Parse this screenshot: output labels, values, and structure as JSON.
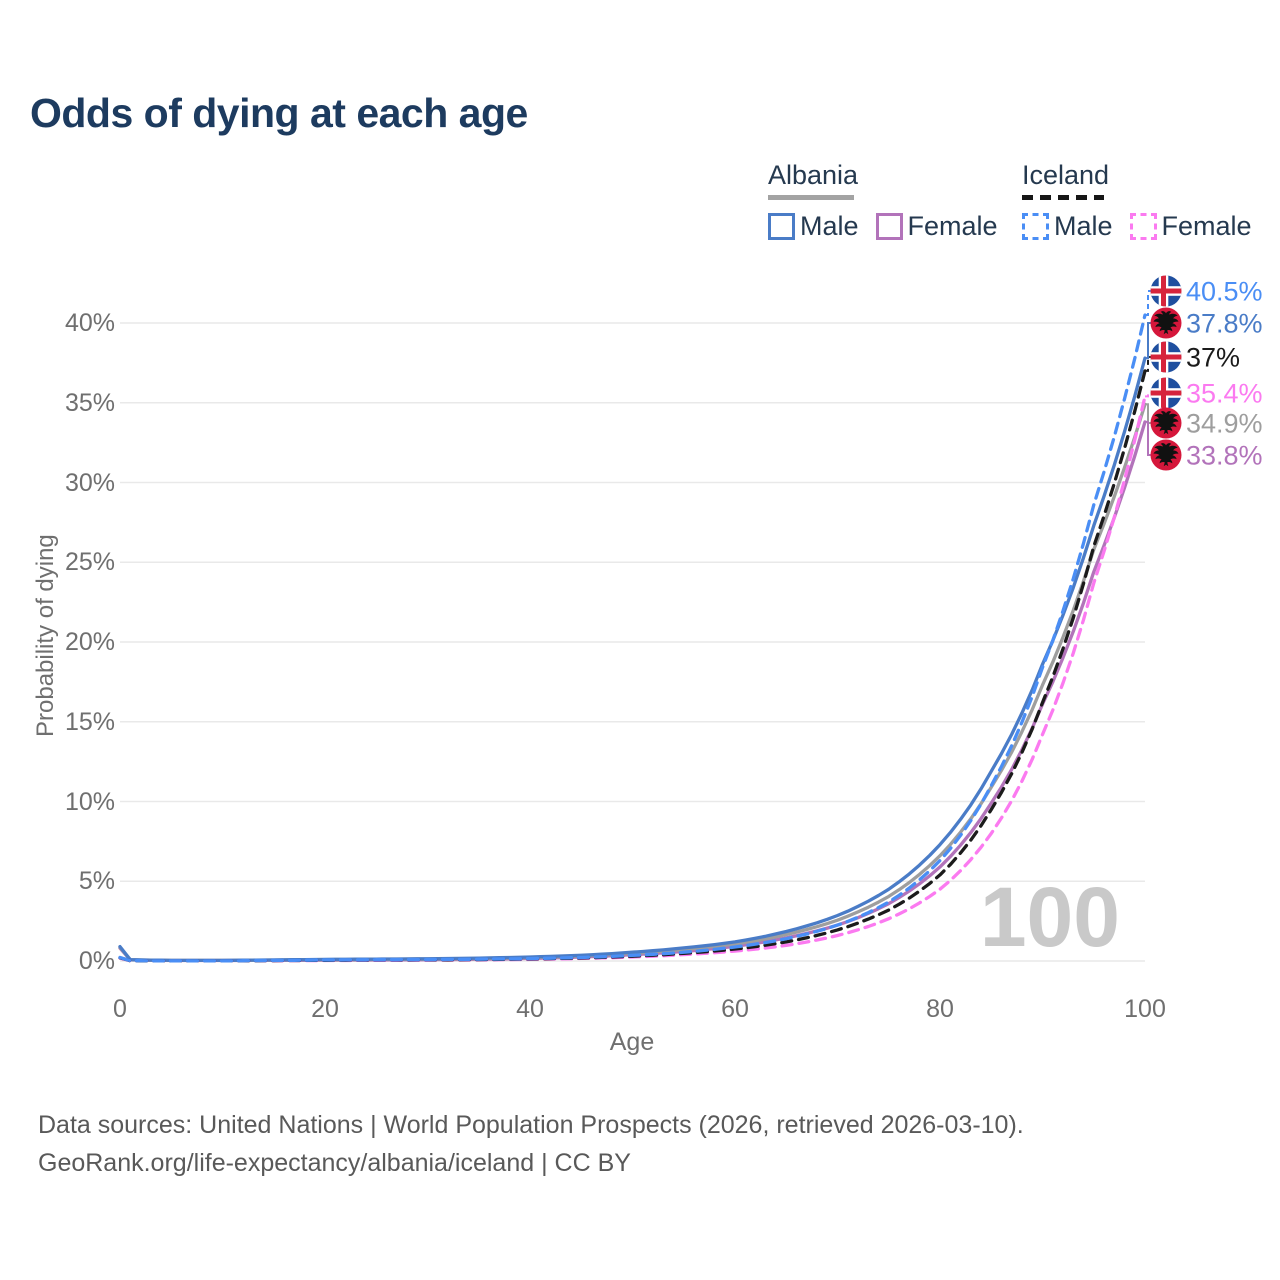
{
  "title": "Odds of dying at each age",
  "legend": {
    "groups": [
      {
        "country": "Albania",
        "line_style": "solid",
        "underline_color": "#a3a3a3",
        "items": [
          {
            "label": "Male",
            "color": "#4a7cc7"
          },
          {
            "label": "Female",
            "color": "#b273ba"
          }
        ]
      },
      {
        "country": "Iceland",
        "line_style": "dashed",
        "underline_color": "#161616",
        "items": [
          {
            "label": "Male",
            "color": "#4a8ef5"
          },
          {
            "label": "Female",
            "color": "#fb7af0"
          }
        ]
      }
    ]
  },
  "chart_data": {
    "type": "line",
    "title": "Odds of dying at each age",
    "xlabel": "Age",
    "ylabel": "Probability of dying",
    "xlim": [
      0,
      100
    ],
    "ylim": [
      0,
      42
    ],
    "xticks": [
      0,
      20,
      40,
      60,
      80,
      100
    ],
    "yticks": [
      {
        "value": 0,
        "label": "0%"
      },
      {
        "value": 5,
        "label": "5%"
      },
      {
        "value": 10,
        "label": "10%"
      },
      {
        "value": 15,
        "label": "15%"
      },
      {
        "value": 20,
        "label": "20%"
      },
      {
        "value": 25,
        "label": "25%"
      },
      {
        "value": 30,
        "label": "30%"
      },
      {
        "value": 35,
        "label": "35%"
      },
      {
        "value": 40,
        "label": "40%"
      }
    ],
    "grid": true,
    "watermark": "100",
    "ages": [
      0,
      1,
      5,
      10,
      15,
      20,
      25,
      30,
      35,
      40,
      45,
      50,
      55,
      60,
      65,
      70,
      75,
      80,
      85,
      90,
      95,
      100
    ],
    "series": [
      {
        "name": "Albania Female",
        "country": "albania",
        "sex": "female",
        "color": "#b273ba",
        "dash": false,
        "values_pct": [
          0.8,
          0.07,
          0.03,
          0.03,
          0.04,
          0.05,
          0.06,
          0.08,
          0.11,
          0.16,
          0.25,
          0.4,
          0.6,
          0.92,
          1.45,
          2.25,
          3.6,
          5.9,
          9.9,
          16.1,
          24.4,
          33.8
        ]
      },
      {
        "name": "Albania Both sexes",
        "country": "albania",
        "sex": "both",
        "color": "#9e9e9e",
        "dash": false,
        "values_pct": [
          0.85,
          0.075,
          0.035,
          0.035,
          0.055,
          0.075,
          0.09,
          0.11,
          0.15,
          0.21,
          0.31,
          0.48,
          0.72,
          1.07,
          1.66,
          2.56,
          4.05,
          6.6,
          10.9,
          17.3,
          25.8,
          34.9
        ]
      },
      {
        "name": "Albania Male",
        "country": "albania",
        "sex": "male",
        "color": "#4a7cc7",
        "dash": false,
        "values_pct": [
          0.9,
          0.08,
          0.04,
          0.04,
          0.07,
          0.1,
          0.12,
          0.14,
          0.18,
          0.25,
          0.36,
          0.55,
          0.82,
          1.2,
          1.85,
          2.85,
          4.5,
          7.3,
          11.9,
          18.6,
          27.3,
          37.8
        ]
      },
      {
        "name": "Iceland Female",
        "country": "iceland",
        "sex": "female",
        "color": "#fb7af0",
        "dash": true,
        "values_pct": [
          0.18,
          0.015,
          0.008,
          0.01,
          0.02,
          0.03,
          0.04,
          0.05,
          0.07,
          0.1,
          0.16,
          0.25,
          0.4,
          0.62,
          0.98,
          1.6,
          2.65,
          4.5,
          8.0,
          14.2,
          23.7,
          35.4
        ]
      },
      {
        "name": "Iceland Both sexes",
        "country": "iceland",
        "sex": "both",
        "color": "#1b1b1b",
        "dash": true,
        "values_pct": [
          0.2,
          0.018,
          0.009,
          0.011,
          0.028,
          0.045,
          0.06,
          0.07,
          0.09,
          0.125,
          0.19,
          0.3,
          0.48,
          0.75,
          1.2,
          1.95,
          3.2,
          5.4,
          9.5,
          16.2,
          26.0,
          37.0
        ]
      },
      {
        "name": "Iceland Male",
        "country": "iceland",
        "sex": "male",
        "color": "#4a8ef5",
        "dash": true,
        "values_pct": [
          0.22,
          0.02,
          0.01,
          0.012,
          0.035,
          0.06,
          0.08,
          0.09,
          0.11,
          0.15,
          0.22,
          0.35,
          0.55,
          0.88,
          1.4,
          2.25,
          3.7,
          6.3,
          11.0,
          18.4,
          28.6,
          40.5
        ]
      }
    ],
    "end_labels": [
      {
        "text": "40.5%",
        "value": 40.5,
        "series": "Iceland Male",
        "flag": "iceland",
        "color": "#4a8ef5",
        "dash": true
      },
      {
        "text": "37.8%",
        "value": 37.8,
        "series": "Albania Male",
        "flag": "albania",
        "color": "#4a7cc7",
        "dash": false
      },
      {
        "text": "37%",
        "value": 37.0,
        "series": "Iceland Both sexes",
        "flag": "iceland",
        "color": "#1b1b1b",
        "dash": true
      },
      {
        "text": "35.4%",
        "value": 35.4,
        "series": "Iceland Female",
        "flag": "iceland",
        "color": "#fb7af0",
        "dash": true
      },
      {
        "text": "34.9%",
        "value": 34.9,
        "series": "Albania Both sexes",
        "flag": "albania",
        "color": "#9e9e9e",
        "dash": false
      },
      {
        "text": "33.8%",
        "value": 33.8,
        "series": "Albania Female",
        "flag": "albania",
        "color": "#b273ba",
        "dash": false
      }
    ],
    "flag_colors": {
      "iceland_blue": "#1f4f9f",
      "iceland_white": "#ffffff",
      "iceland_red": "#d6243c",
      "albania_red": "#d5173b",
      "albania_eagle": "#111111"
    }
  },
  "footer": {
    "line1": "Data sources: United Nations | World Population Prospects (2026, retrieved 2026-03-10).",
    "line2": "GeoRank.org/life-expectancy/albania/iceland | CC BY"
  }
}
